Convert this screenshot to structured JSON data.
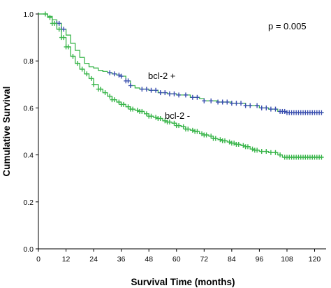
{
  "chart_data": {
    "type": "line",
    "xlabel": "Survival Time (months)",
    "ylabel": "Cumulative Survival",
    "xlim": [
      0,
      125
    ],
    "ylim": [
      0,
      1.0
    ],
    "x_ticks": [
      0,
      12,
      24,
      36,
      48,
      60,
      72,
      84,
      96,
      108,
      120
    ],
    "y_ticks": [
      0.0,
      0.2,
      0.4,
      0.6,
      0.8,
      1.0
    ],
    "x_tick_labels": [
      "0",
      "12",
      "24",
      "36",
      "48",
      "60",
      "72",
      "84",
      "96",
      "108",
      "120"
    ],
    "y_tick_labels": [
      "0.0",
      "0.2",
      "0.4",
      "0.6",
      "0.8",
      "1.0"
    ],
    "grid": false,
    "p_value_text": "p = 0.005",
    "series": [
      {
        "name": "bcl-2 +",
        "line_color": "#39b54a",
        "censor_color": "#3b4fb0",
        "points": [
          [
            0,
            1.0
          ],
          [
            4,
            0.99
          ],
          [
            6,
            0.975
          ],
          [
            8,
            0.96
          ],
          [
            10,
            0.935
          ],
          [
            12,
            0.91
          ],
          [
            14,
            0.875
          ],
          [
            16,
            0.845
          ],
          [
            18,
            0.815
          ],
          [
            20,
            0.79
          ],
          [
            22,
            0.775
          ],
          [
            24,
            0.77
          ],
          [
            26,
            0.76
          ],
          [
            28,
            0.755
          ],
          [
            30,
            0.75
          ],
          [
            32,
            0.745
          ],
          [
            34,
            0.74
          ],
          [
            36,
            0.735
          ],
          [
            38,
            0.715
          ],
          [
            40,
            0.695
          ],
          [
            42,
            0.685
          ],
          [
            44,
            0.68
          ],
          [
            48,
            0.675
          ],
          [
            52,
            0.665
          ],
          [
            56,
            0.66
          ],
          [
            60,
            0.655
          ],
          [
            66,
            0.645
          ],
          [
            70,
            0.64
          ],
          [
            72,
            0.63
          ],
          [
            78,
            0.625
          ],
          [
            84,
            0.62
          ],
          [
            90,
            0.61
          ],
          [
            96,
            0.6
          ],
          [
            100,
            0.595
          ],
          [
            104,
            0.585
          ],
          [
            108,
            0.58
          ],
          [
            124,
            0.58
          ]
        ],
        "censored_x": [
          8,
          9,
          10,
          11,
          31,
          33,
          35,
          36,
          38,
          39,
          40,
          45,
          47,
          49,
          51,
          53,
          55,
          57,
          59,
          61,
          64,
          67,
          69,
          72,
          75,
          78,
          80,
          82,
          84,
          86,
          88,
          90,
          92,
          95,
          97,
          99,
          101,
          103,
          105,
          106,
          107,
          108,
          109,
          110,
          111,
          112,
          113,
          114,
          115,
          116,
          117,
          118,
          119,
          120,
          121,
          122,
          123
        ]
      },
      {
        "name": "bcl-2 -",
        "line_color": "#39b54a",
        "censor_color": "#39b54a",
        "points": [
          [
            0,
            1.0
          ],
          [
            4,
            0.985
          ],
          [
            6,
            0.96
          ],
          [
            8,
            0.935
          ],
          [
            10,
            0.9
          ],
          [
            12,
            0.86
          ],
          [
            14,
            0.82
          ],
          [
            16,
            0.79
          ],
          [
            18,
            0.765
          ],
          [
            20,
            0.745
          ],
          [
            22,
            0.725
          ],
          [
            24,
            0.7
          ],
          [
            26,
            0.68
          ],
          [
            28,
            0.665
          ],
          [
            30,
            0.65
          ],
          [
            32,
            0.635
          ],
          [
            34,
            0.625
          ],
          [
            36,
            0.615
          ],
          [
            38,
            0.605
          ],
          [
            40,
            0.595
          ],
          [
            42,
            0.59
          ],
          [
            44,
            0.585
          ],
          [
            46,
            0.575
          ],
          [
            48,
            0.565
          ],
          [
            50,
            0.56
          ],
          [
            52,
            0.555
          ],
          [
            54,
            0.545
          ],
          [
            56,
            0.54
          ],
          [
            58,
            0.535
          ],
          [
            60,
            0.525
          ],
          [
            62,
            0.52
          ],
          [
            64,
            0.51
          ],
          [
            66,
            0.505
          ],
          [
            68,
            0.5
          ],
          [
            70,
            0.49
          ],
          [
            72,
            0.485
          ],
          [
            74,
            0.48
          ],
          [
            76,
            0.47
          ],
          [
            78,
            0.465
          ],
          [
            80,
            0.46
          ],
          [
            82,
            0.455
          ],
          [
            84,
            0.45
          ],
          [
            86,
            0.445
          ],
          [
            88,
            0.44
          ],
          [
            90,
            0.435
          ],
          [
            92,
            0.425
          ],
          [
            94,
            0.42
          ],
          [
            96,
            0.415
          ],
          [
            100,
            0.41
          ],
          [
            104,
            0.4
          ],
          [
            106,
            0.39
          ],
          [
            124,
            0.39
          ]
        ],
        "censored_x": [
          3,
          5,
          6,
          7,
          9,
          10,
          11,
          12,
          13,
          15,
          17,
          19,
          21,
          23,
          24,
          26,
          27,
          29,
          31,
          32,
          33,
          35,
          36,
          37,
          39,
          40,
          41,
          43,
          44,
          45,
          47,
          48,
          49,
          51,
          52,
          53,
          55,
          56,
          57,
          59,
          60,
          61,
          63,
          64,
          65,
          67,
          68,
          69,
          71,
          72,
          73,
          75,
          76,
          77,
          79,
          80,
          81,
          83,
          84,
          85,
          86,
          87,
          89,
          90,
          91,
          93,
          94,
          95,
          97,
          99,
          101,
          103,
          105,
          107,
          108,
          109,
          110,
          111,
          112,
          113,
          114,
          115,
          116,
          117,
          118,
          119,
          120,
          121,
          122,
          123
        ]
      }
    ]
  }
}
